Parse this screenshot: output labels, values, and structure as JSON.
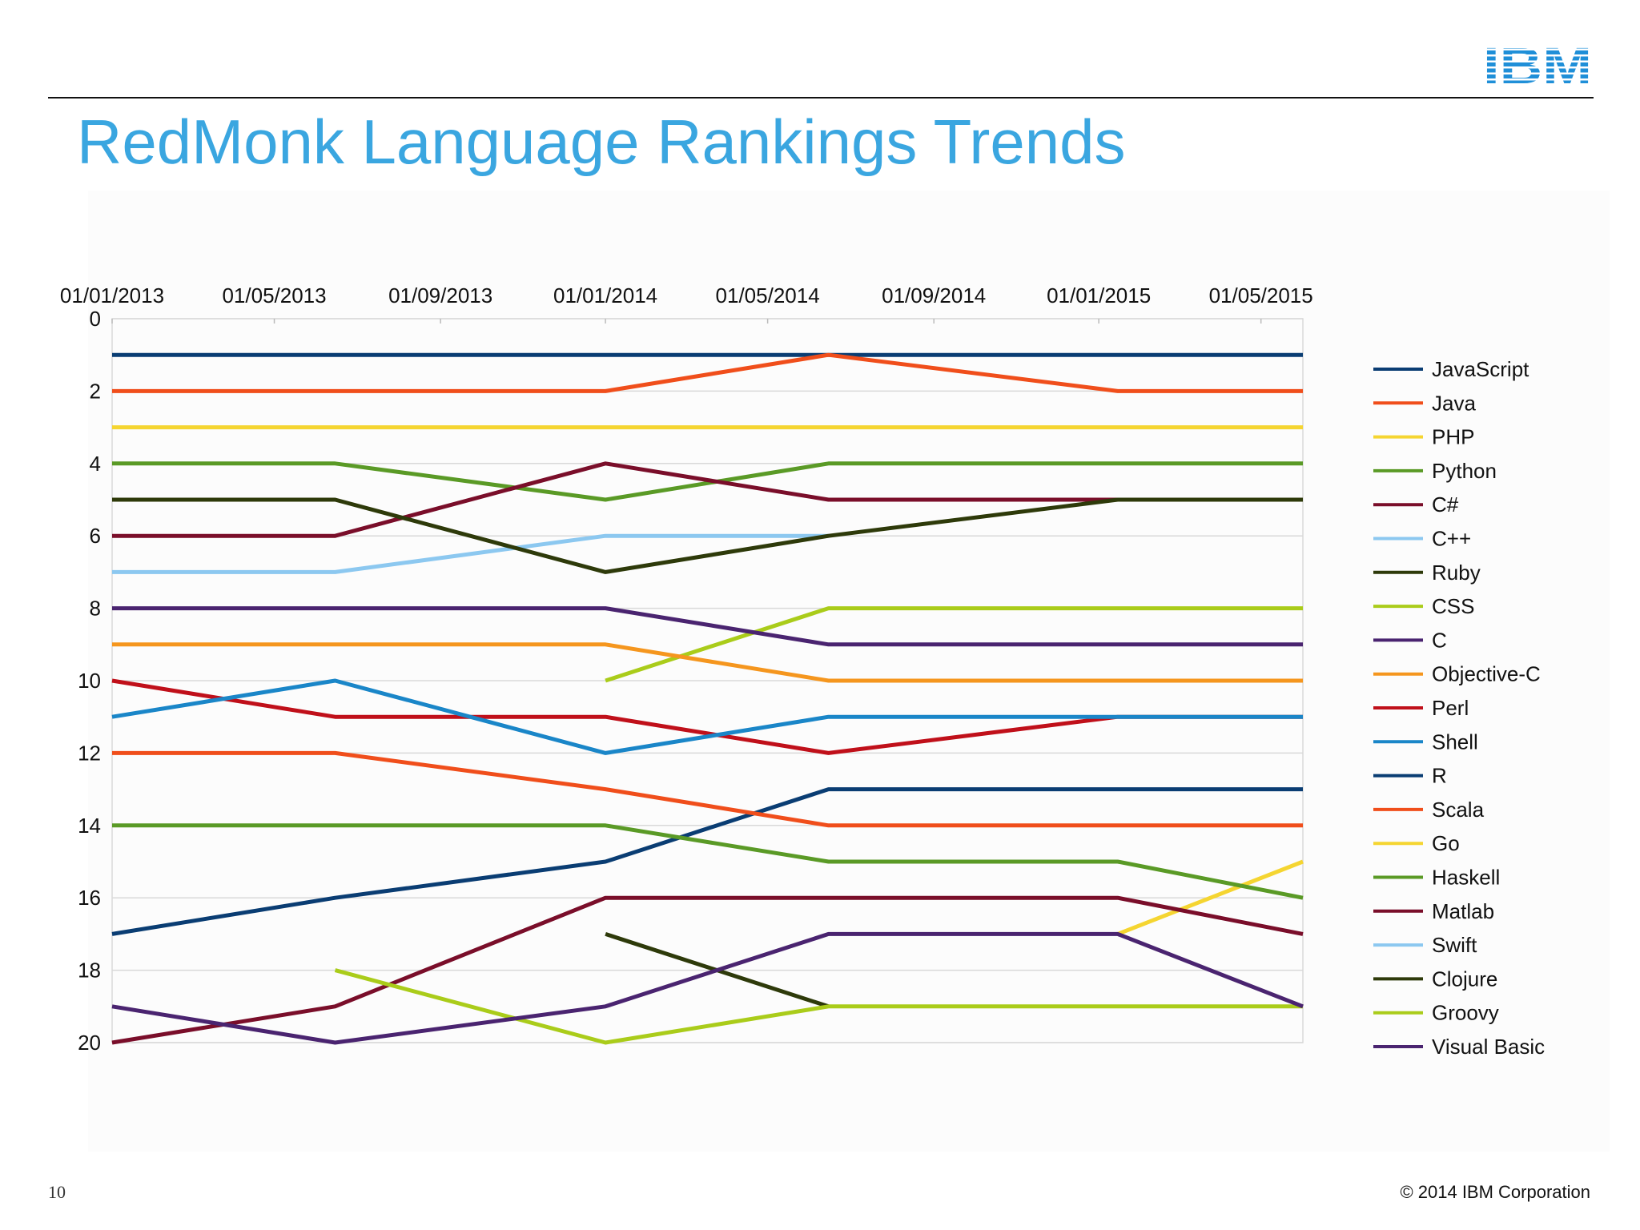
{
  "slide": {
    "title": "RedMonk Language Rankings Trends",
    "logo_text": "IBM",
    "page_number": "10",
    "copyright": "© 2014 IBM Corporation"
  },
  "colors": {
    "title": "#3aa6e0",
    "logo": "#1f8fd8"
  },
  "chart_data": {
    "type": "line",
    "title": "",
    "xlabel": "",
    "ylabel": "",
    "x_ticks": [
      "01/01/2013",
      "01/05/2013",
      "01/09/2013",
      "01/01/2014",
      "01/05/2014",
      "01/09/2014",
      "01/01/2015",
      "01/05/2015"
    ],
    "x_tick_dates": [
      "2013-01-01",
      "2013-05-01",
      "2013-09-01",
      "2014-01-01",
      "2014-05-01",
      "2014-09-01",
      "2015-01-01",
      "2015-05-01"
    ],
    "x_range": [
      "2013-01-01",
      "2015-06-01"
    ],
    "x_axis_position": "top",
    "y_ticks": [
      0,
      2,
      4,
      6,
      8,
      10,
      12,
      14,
      16,
      18,
      20
    ],
    "ylim": [
      0,
      20
    ],
    "y_reversed": true,
    "grid": "horizontal",
    "legend_position": "right",
    "x": [
      "2013-01-01",
      "2013-06-15",
      "2014-01-01",
      "2014-06-15",
      "2015-01-15",
      "2015-06-01"
    ],
    "series": [
      {
        "name": "JavaScript",
        "color": "#0a3d73",
        "values": [
          1,
          1,
          1,
          1,
          1,
          1
        ]
      },
      {
        "name": "Java",
        "color": "#f04e1b",
        "values": [
          2,
          2,
          2,
          1,
          2,
          2
        ]
      },
      {
        "name": "PHP",
        "color": "#f5d531",
        "values": [
          3,
          3,
          3,
          3,
          3,
          3
        ]
      },
      {
        "name": "Python",
        "color": "#5a9a26",
        "values": [
          4,
          4,
          5,
          4,
          4,
          4
        ]
      },
      {
        "name": "C#",
        "color": "#7a0e2a",
        "values": [
          6,
          6,
          4,
          5,
          5,
          5
        ]
      },
      {
        "name": "C++",
        "color": "#8cc8f0",
        "values": [
          7,
          7,
          6,
          6,
          null,
          null
        ]
      },
      {
        "name": "Ruby",
        "color": "#2e3a0a",
        "values": [
          5,
          5,
          7,
          6,
          5,
          5
        ]
      },
      {
        "name": "CSS",
        "color": "#aacc1a",
        "values": [
          null,
          null,
          10,
          8,
          8,
          8
        ]
      },
      {
        "name": "C",
        "color": "#4a2470",
        "values": [
          8,
          8,
          8,
          9,
          9,
          9
        ]
      },
      {
        "name": "Objective-C",
        "color": "#f5961e",
        "values": [
          9,
          9,
          9,
          10,
          10,
          10
        ]
      },
      {
        "name": "Perl",
        "color": "#c0101a",
        "values": [
          10,
          11,
          11,
          12,
          11,
          11
        ]
      },
      {
        "name": "Shell",
        "color": "#1a86c8",
        "values": [
          11,
          10,
          12,
          11,
          11,
          11
        ]
      },
      {
        "name": "R",
        "color": "#0a3d73",
        "values": [
          17,
          16,
          15,
          13,
          13,
          13
        ]
      },
      {
        "name": "Scala",
        "color": "#f04e1b",
        "values": [
          12,
          12,
          13,
          14,
          14,
          14
        ]
      },
      {
        "name": "Go",
        "color": "#f5d531",
        "values": [
          null,
          null,
          null,
          null,
          17,
          15
        ]
      },
      {
        "name": "Haskell",
        "color": "#5a9a26",
        "values": [
          14,
          14,
          14,
          15,
          15,
          16
        ]
      },
      {
        "name": "Matlab",
        "color": "#7a0e2a",
        "values": [
          20,
          19,
          16,
          16,
          16,
          17
        ]
      },
      {
        "name": "Swift",
        "color": "#8cc8f0",
        "values": [
          null,
          null,
          null,
          null,
          null,
          null
        ]
      },
      {
        "name": "Clojure",
        "color": "#2e3a0a",
        "values": [
          null,
          null,
          17,
          19,
          null,
          null
        ]
      },
      {
        "name": "Groovy",
        "color": "#aacc1a",
        "values": [
          null,
          18,
          20,
          19,
          19,
          19
        ]
      },
      {
        "name": "Visual Basic",
        "color": "#4a2470",
        "values": [
          19,
          20,
          19,
          17,
          17,
          19
        ]
      }
    ]
  }
}
